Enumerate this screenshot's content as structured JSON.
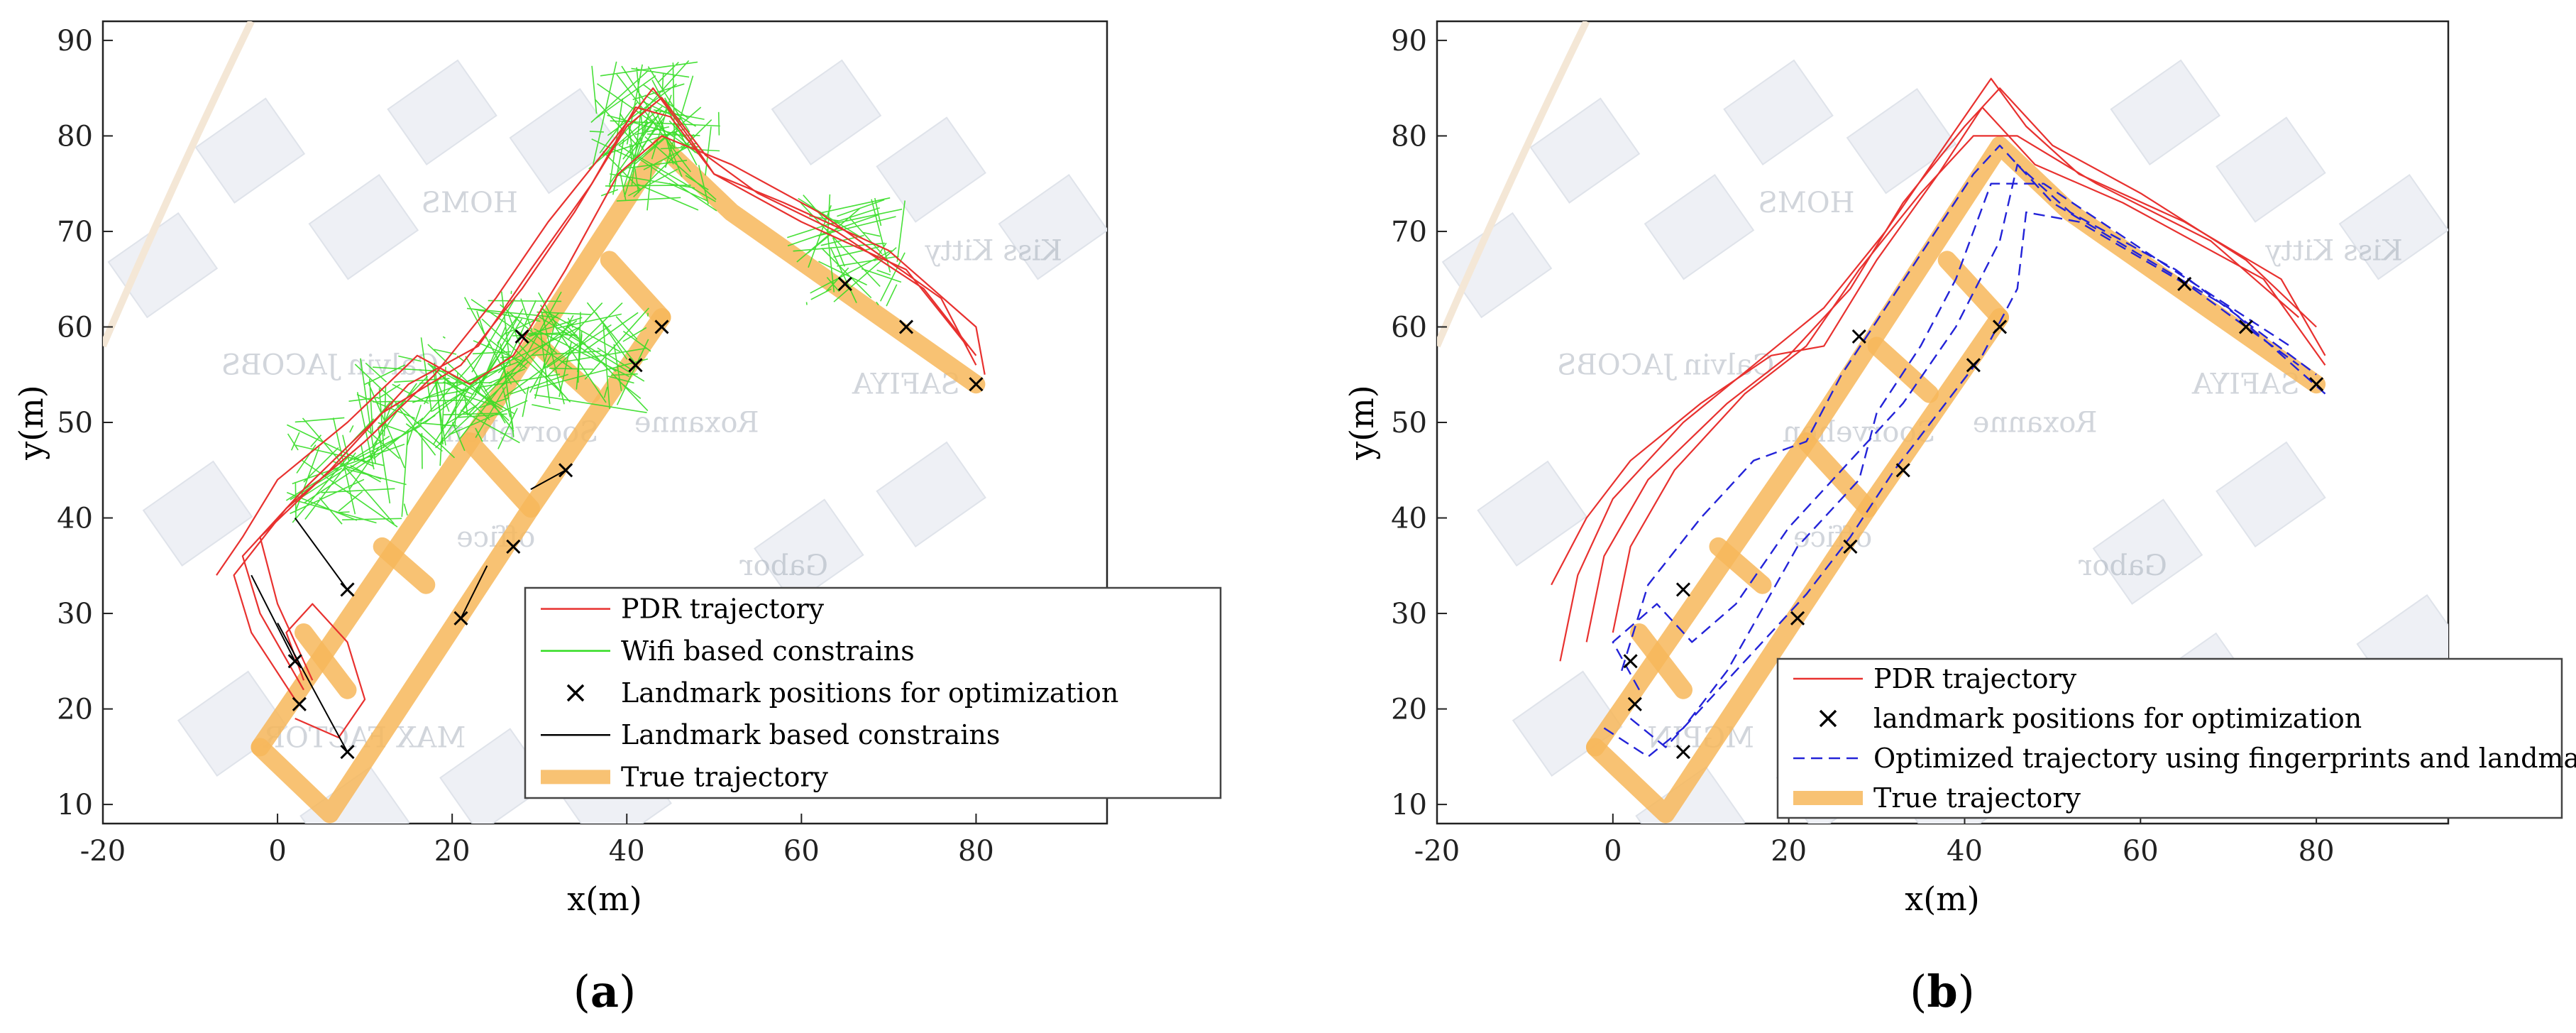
{
  "chart_data": [
    {
      "type": "line",
      "panel_label_prefix": "(",
      "panel_label_letter": "a",
      "panel_label_suffix": ")",
      "xlabel": "x(m)",
      "ylabel": "y(m)",
      "xlim": [
        -20,
        95
      ],
      "ylim": [
        8,
        92
      ],
      "xticks": [
        -20,
        0,
        20,
        40,
        60,
        80
      ],
      "yticks": [
        10,
        20,
        30,
        40,
        50,
        60,
        70,
        80,
        90
      ],
      "legend_position": "bottom-right",
      "legend": [
        {
          "label": "PDR trajectory",
          "color": "#e8312f",
          "style": "thin-line"
        },
        {
          "label": "Wifi based constrains",
          "color": "#33dd22",
          "style": "thin-line"
        },
        {
          "label": "Landmark positions for optimization",
          "color": "#000000",
          "style": "x-marker"
        },
        {
          "label": "Landmark based constrains",
          "color": "#000000",
          "style": "thin-line"
        },
        {
          "label": "True trajectory",
          "color": "#f7b75a",
          "style": "thick-line"
        }
      ],
      "background_labels": [
        "HOMS",
        "Calvin JACOBS",
        "Soorvehen",
        "Roxanne",
        "office",
        "SAFIYA",
        "Kiss Kitty",
        "MAX FACTOR",
        "Gabor"
      ],
      "true_trajectory": [
        [
          [
            -2,
            16
          ],
          [
            6,
            9
          ],
          [
            29,
            41
          ],
          [
            44,
            61
          ]
        ],
        [
          [
            -2,
            16
          ],
          [
            22,
            48
          ],
          [
            44,
            79
          ],
          [
            52,
            72
          ],
          [
            80,
            54
          ]
        ],
        [
          [
            3,
            28
          ],
          [
            8,
            22
          ]
        ],
        [
          [
            12,
            37
          ],
          [
            17,
            33
          ]
        ],
        [
          [
            22,
            48
          ],
          [
            29,
            41
          ]
        ],
        [
          [
            30,
            58
          ],
          [
            36,
            53
          ]
        ],
        [
          [
            38,
            67
          ],
          [
            44,
            61
          ]
        ]
      ],
      "landmarks": [
        [
          2.5,
          20.5
        ],
        [
          2,
          25
        ],
        [
          8,
          32.5
        ],
        [
          8,
          15.5
        ],
        [
          21,
          29.5
        ],
        [
          27,
          37
        ],
        [
          33,
          45
        ],
        [
          28,
          59
        ],
        [
          41,
          56
        ],
        [
          44,
          60
        ],
        [
          65,
          64.5
        ],
        [
          72,
          60
        ],
        [
          80,
          54
        ]
      ],
      "pdr_trajectories": [
        [
          [
            2,
            21
          ],
          [
            -3,
            28
          ],
          [
            -5,
            34
          ],
          [
            1,
            41
          ],
          [
            10,
            48
          ],
          [
            18,
            55
          ],
          [
            25,
            63
          ],
          [
            31,
            71
          ],
          [
            38,
            79
          ],
          [
            43,
            85
          ],
          [
            47,
            80
          ],
          [
            50,
            76
          ],
          [
            58,
            73
          ],
          [
            70,
            68
          ],
          [
            80,
            60
          ],
          [
            81,
            55
          ]
        ],
        [
          [
            3,
            22
          ],
          [
            -2,
            30
          ],
          [
            -4,
            36
          ],
          [
            3,
            43
          ],
          [
            12,
            51
          ],
          [
            21,
            56
          ],
          [
            28,
            64
          ],
          [
            34,
            72
          ],
          [
            40,
            81
          ],
          [
            44,
            84
          ],
          [
            49,
            78
          ],
          [
            55,
            74
          ],
          [
            64,
            70
          ],
          [
            74,
            64
          ],
          [
            80,
            57
          ]
        ],
        [
          [
            4,
            23
          ],
          [
            0,
            31
          ],
          [
            -2,
            38
          ],
          [
            6,
            45
          ],
          [
            15,
            54
          ],
          [
            23,
            58
          ],
          [
            29,
            66
          ],
          [
            36,
            75
          ],
          [
            41,
            83
          ],
          [
            45,
            82
          ],
          [
            50,
            76
          ],
          [
            60,
            71
          ],
          [
            72,
            66
          ],
          [
            79,
            58
          ]
        ],
        [
          [
            -7,
            34
          ],
          [
            -4,
            38
          ],
          [
            0,
            44
          ],
          [
            8,
            50
          ],
          [
            16,
            57
          ],
          [
            22,
            54
          ],
          [
            27,
            57
          ],
          [
            33,
            66
          ],
          [
            39,
            76
          ],
          [
            44,
            80
          ],
          [
            52,
            77
          ],
          [
            62,
            72
          ],
          [
            76,
            63
          ],
          [
            80,
            56
          ]
        ],
        [
          [
            2,
            19
          ],
          [
            7,
            17
          ],
          [
            10,
            21
          ],
          [
            8,
            27
          ],
          [
            4,
            31
          ],
          [
            1,
            28
          ],
          [
            3,
            23
          ]
        ]
      ],
      "wifi_clusters": [
        [
          8,
          45
        ],
        [
          15,
          51
        ],
        [
          22,
          53
        ],
        [
          28,
          58
        ],
        [
          36,
          57
        ],
        [
          42,
          82
        ],
        [
          44,
          78
        ],
        [
          65,
          68
        ]
      ],
      "landmark_constraints": [
        [
          [
            -3,
            34
          ],
          [
            2,
            25
          ]
        ],
        [
          [
            2,
            40
          ],
          [
            8,
            32.5
          ]
        ],
        [
          [
            0,
            29
          ],
          [
            8,
            15.5
          ]
        ],
        [
          [
            24,
            35
          ],
          [
            21,
            29.5
          ]
        ],
        [
          [
            29,
            43
          ],
          [
            33,
            45
          ]
        ]
      ]
    },
    {
      "type": "line",
      "panel_label_prefix": "(",
      "panel_label_letter": "b",
      "panel_label_suffix": ")",
      "xlabel": "x(m)",
      "ylabel": "y(m)",
      "xlim": [
        -20,
        95
      ],
      "ylim": [
        8,
        92
      ],
      "xticks": [
        -20,
        0,
        20,
        40,
        60,
        80
      ],
      "yticks": [
        10,
        20,
        30,
        40,
        50,
        60,
        70,
        80,
        90
      ],
      "legend_position": "bottom-right",
      "legend": [
        {
          "label": "PDR trajectory",
          "color": "#e8312f",
          "style": "thin-line"
        },
        {
          "label": "landmark positions for optimization",
          "color": "#000000",
          "style": "x-marker"
        },
        {
          "label": "Optimized trajectory using fingerprints and landmarks",
          "color": "#2323d8",
          "style": "dashed-line"
        },
        {
          "label": "True trajectory",
          "color": "#f7b75a",
          "style": "thick-line"
        }
      ],
      "background_labels": [
        "HOMS",
        "Calvin JACOBS",
        "Soorvehen",
        "Roxanne",
        "office",
        "SAFIYA",
        "Kiss Kitty",
        "MGPIN",
        "Gabor"
      ],
      "true_trajectory": [
        [
          [
            -2,
            16
          ],
          [
            6,
            9
          ],
          [
            29,
            41
          ],
          [
            44,
            61
          ]
        ],
        [
          [
            -2,
            16
          ],
          [
            22,
            48
          ],
          [
            44,
            79
          ],
          [
            52,
            72
          ],
          [
            80,
            54
          ]
        ],
        [
          [
            3,
            28
          ],
          [
            8,
            22
          ]
        ],
        [
          [
            12,
            37
          ],
          [
            17,
            33
          ]
        ],
        [
          [
            22,
            48
          ],
          [
            29,
            41
          ]
        ],
        [
          [
            30,
            58
          ],
          [
            36,
            53
          ]
        ],
        [
          [
            38,
            67
          ],
          [
            44,
            61
          ]
        ]
      ],
      "landmarks": [
        [
          2.5,
          20.5
        ],
        [
          2,
          25
        ],
        [
          8,
          32.5
        ],
        [
          8,
          15.5
        ],
        [
          21,
          29.5
        ],
        [
          27,
          37
        ],
        [
          33,
          45
        ],
        [
          28,
          59
        ],
        [
          41,
          56
        ],
        [
          44,
          60
        ],
        [
          65,
          64.5
        ],
        [
          72,
          60
        ],
        [
          80,
          54
        ]
      ],
      "pdr_trajectories": [
        [
          [
            -6,
            25
          ],
          [
            -4,
            34
          ],
          [
            0,
            42
          ],
          [
            8,
            50
          ],
          [
            16,
            56
          ],
          [
            24,
            62
          ],
          [
            31,
            70
          ],
          [
            37,
            78
          ],
          [
            43,
            86
          ],
          [
            47,
            81
          ],
          [
            53,
            76
          ],
          [
            65,
            71
          ],
          [
            76,
            65
          ],
          [
            81,
            57
          ]
        ],
        [
          [
            -3,
            27
          ],
          [
            -1,
            36
          ],
          [
            4,
            44
          ],
          [
            13,
            52
          ],
          [
            20,
            57
          ],
          [
            27,
            64
          ],
          [
            33,
            73
          ],
          [
            40,
            81
          ],
          [
            44,
            85
          ],
          [
            50,
            79
          ],
          [
            60,
            74
          ],
          [
            72,
            67
          ],
          [
            80,
            60
          ]
        ],
        [
          [
            0,
            28
          ],
          [
            2,
            37
          ],
          [
            7,
            45
          ],
          [
            15,
            53
          ],
          [
            22,
            58
          ],
          [
            28,
            66
          ],
          [
            35,
            74
          ],
          [
            41,
            80
          ],
          [
            46,
            80
          ],
          [
            55,
            75
          ],
          [
            68,
            69
          ],
          [
            78,
            61
          ]
        ],
        [
          [
            -7,
            33
          ],
          [
            -3,
            40
          ],
          [
            2,
            46
          ],
          [
            10,
            52
          ],
          [
            18,
            57
          ],
          [
            24,
            58
          ],
          [
            30,
            67
          ],
          [
            37,
            76
          ],
          [
            42,
            83
          ],
          [
            48,
            77
          ],
          [
            58,
            73
          ],
          [
            74,
            65
          ],
          [
            81,
            56
          ]
        ]
      ],
      "optimized_trajectories": [
        [
          [
            2,
            19
          ],
          [
            6,
            16
          ],
          [
            10,
            20
          ],
          [
            16,
            26
          ],
          [
            22,
            32
          ],
          [
            27,
            38
          ],
          [
            32,
            45
          ],
          [
            37,
            51
          ],
          [
            42,
            57
          ],
          [
            46,
            64
          ],
          [
            47,
            72
          ],
          [
            53,
            71
          ],
          [
            66,
            64
          ],
          [
            78,
            56
          ]
        ],
        [
          [
            3,
            22
          ],
          [
            0,
            27
          ],
          [
            5,
            31
          ],
          [
            9,
            27
          ],
          [
            14,
            31
          ],
          [
            20,
            39
          ],
          [
            26,
            45
          ],
          [
            33,
            52
          ],
          [
            39,
            60
          ],
          [
            44,
            69
          ],
          [
            46,
            77
          ],
          [
            52,
            72
          ],
          [
            64,
            66
          ],
          [
            80,
            55
          ]
        ],
        [
          [
            1,
            24
          ],
          [
            4,
            33
          ],
          [
            10,
            40
          ],
          [
            16,
            46
          ],
          [
            22,
            48
          ],
          [
            26,
            55
          ],
          [
            31,
            62
          ],
          [
            36,
            69
          ],
          [
            41,
            76
          ],
          [
            44,
            79
          ],
          [
            50,
            73
          ],
          [
            70,
            62
          ],
          [
            81,
            53
          ]
        ],
        [
          [
            -1,
            18
          ],
          [
            4,
            15
          ],
          [
            8,
            18
          ],
          [
            13,
            24
          ],
          [
            21,
            37
          ],
          [
            28,
            44
          ],
          [
            30,
            51
          ],
          [
            35,
            58
          ],
          [
            39,
            65
          ],
          [
            43,
            75
          ],
          [
            49,
            75
          ],
          [
            62,
            67
          ],
          [
            77,
            58
          ]
        ]
      ]
    }
  ]
}
